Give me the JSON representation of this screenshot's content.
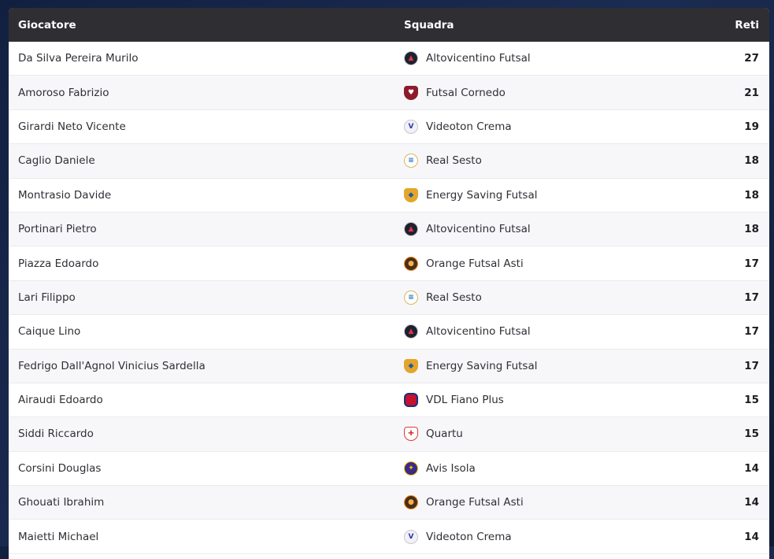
{
  "table": {
    "headers": {
      "player": "Giocatore",
      "team": "Squadra",
      "goals": "Reti"
    },
    "rows": [
      {
        "player": "Da Silva Pereira Murilo",
        "team": "Altovicentino Futsal",
        "goals": "27",
        "icon": "altovicentino-logo-icon"
      },
      {
        "player": "Amoroso Fabrizio",
        "team": "Futsal Cornedo",
        "goals": "21",
        "icon": "futsal-cornedo-logo-icon"
      },
      {
        "player": "Girardi Neto Vicente",
        "team": "Videoton Crema",
        "goals": "19",
        "icon": "videoton-crema-logo-icon"
      },
      {
        "player": "Caglio Daniele",
        "team": "Real Sesto",
        "goals": "18",
        "icon": "real-sesto-logo-icon"
      },
      {
        "player": "Montrasio Davide",
        "team": "Energy Saving Futsal",
        "goals": "18",
        "icon": "energy-saving-logo-icon"
      },
      {
        "player": "Portinari Pietro",
        "team": "Altovicentino Futsal",
        "goals": "18",
        "icon": "altovicentino-logo-icon"
      },
      {
        "player": "Piazza Edoardo",
        "team": "Orange Futsal Asti",
        "goals": "17",
        "icon": "orange-asti-logo-icon"
      },
      {
        "player": "Lari Filippo",
        "team": "Real Sesto",
        "goals": "17",
        "icon": "real-sesto-logo-icon"
      },
      {
        "player": "Caique Lino",
        "team": "Altovicentino Futsal",
        "goals": "17",
        "icon": "altovicentino-logo-icon"
      },
      {
        "player": "Fedrigo Dall'Agnol Vinicius Sardella",
        "team": "Energy Saving Futsal",
        "goals": "17",
        "icon": "energy-saving-logo-icon"
      },
      {
        "player": "Airaudi Edoardo",
        "team": "VDL Fiano Plus",
        "goals": "15",
        "icon": "vdl-fiano-logo-icon"
      },
      {
        "player": "Siddi Riccardo",
        "team": "Quartu",
        "goals": "15",
        "icon": "quartu-logo-icon"
      },
      {
        "player": "Corsini Douglas",
        "team": "Avis Isola",
        "goals": "14",
        "icon": "avis-isola-logo-icon"
      },
      {
        "player": "Ghouati Ibrahim",
        "team": "Orange Futsal Asti",
        "goals": "14",
        "icon": "orange-asti-logo-icon"
      },
      {
        "player": "Maietti Michael",
        "team": "Videoton Crema",
        "goals": "14",
        "icon": "videoton-crema-logo-icon"
      }
    ]
  },
  "colors": {
    "header_bg": "#2e2e33",
    "header_text": "#ffffff",
    "row_alt_bg": "#f7f7f9",
    "page_bg": "#16243f"
  }
}
